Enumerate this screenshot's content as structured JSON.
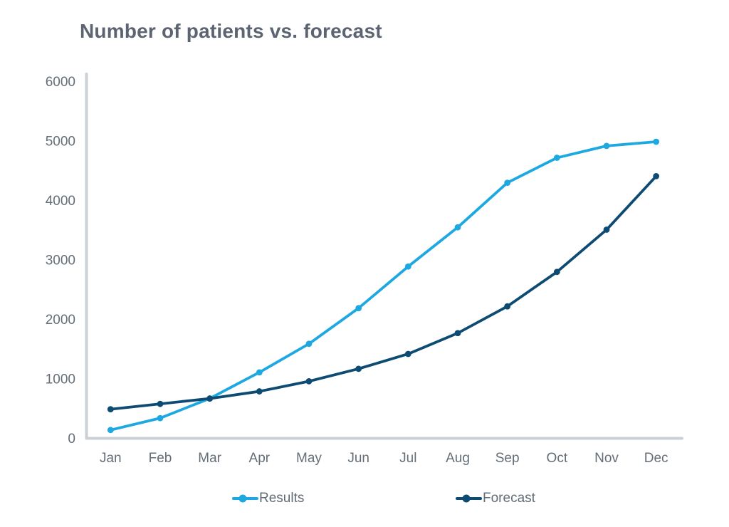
{
  "chart_data": {
    "type": "line",
    "title": "Number of patients vs. forecast",
    "categories": [
      "Jan",
      "Feb",
      "Mar",
      "Apr",
      "May",
      "Jun",
      "Jul",
      "Aug",
      "Sep",
      "Oct",
      "Nov",
      "Dec"
    ],
    "series": [
      {
        "name": "Results",
        "color": "#1EA8E1",
        "values": [
          140,
          340,
          670,
          1110,
          1590,
          2190,
          2890,
          3550,
          4300,
          4720,
          4920,
          4990
        ]
      },
      {
        "name": "Forecast",
        "color": "#0E4B73",
        "values": [
          490,
          580,
          670,
          790,
          960,
          1170,
          1420,
          1770,
          2220,
          2800,
          3510,
          4410
        ]
      }
    ],
    "xlabel": "",
    "ylabel": "",
    "ylim": [
      0,
      6000
    ],
    "yticks": [
      0,
      1000,
      2000,
      3000,
      4000,
      5000,
      6000
    ],
    "grid": false,
    "legend_position": "bottom",
    "colors": {
      "axis": "#CBD0D4",
      "tick_label": "#646E78",
      "legend_label": "#626C76",
      "title": "#5B6470",
      "background": "#FFFFFF"
    }
  }
}
